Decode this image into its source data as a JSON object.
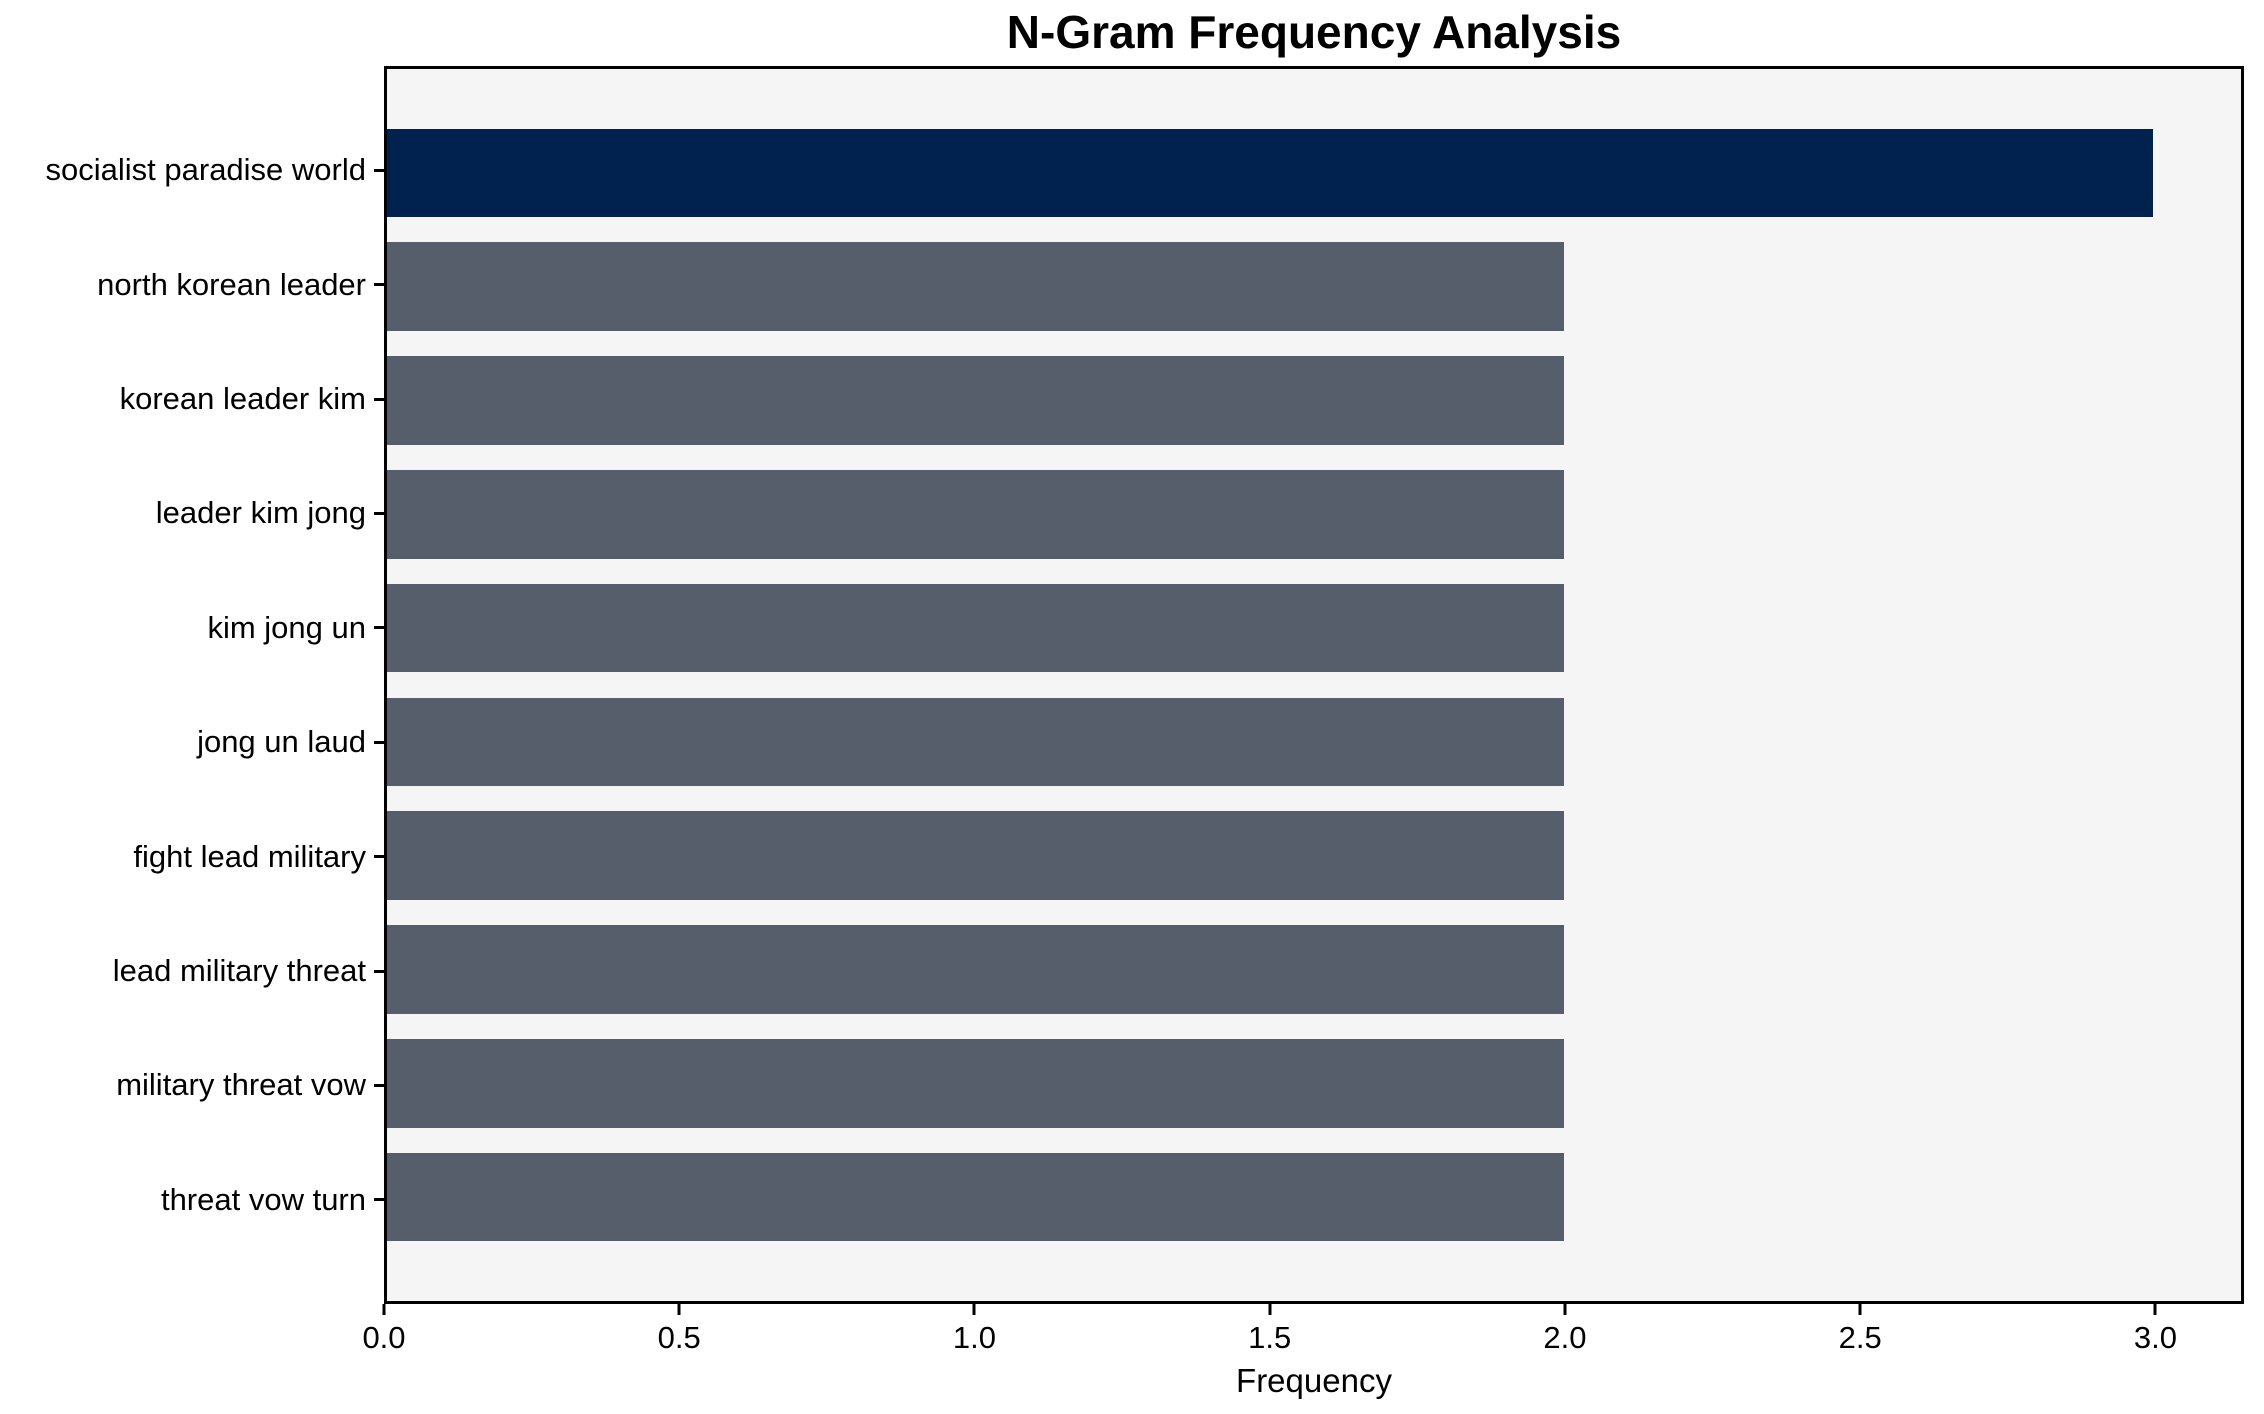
{
  "chart_data": {
    "type": "bar",
    "orientation": "horizontal",
    "title": "N-Gram Frequency Analysis",
    "xlabel": "Frequency",
    "ylabel": "",
    "categories": [
      "socialist paradise world",
      "north korean leader",
      "korean leader kim",
      "leader kim jong",
      "kim jong un",
      "jong un laud",
      "fight lead military",
      "lead military threat",
      "military threat vow",
      "threat vow turn"
    ],
    "values": [
      3,
      2,
      2,
      2,
      2,
      2,
      2,
      2,
      2,
      2
    ],
    "bar_colors": [
      "#01224e",
      "#565d6b",
      "#565d6b",
      "#565d6b",
      "#565d6b",
      "#565d6b",
      "#565d6b",
      "#565d6b",
      "#565d6b",
      "#565d6b"
    ],
    "xlim": [
      0,
      3.15
    ],
    "xticks": [
      0.0,
      0.5,
      1.0,
      1.5,
      2.0,
      2.5,
      3.0
    ],
    "xtick_labels": [
      "0.0",
      "0.5",
      "1.0",
      "1.5",
      "2.0",
      "2.5",
      "3.0"
    ],
    "grid": false,
    "layout": {
      "plot_background": "#f5f5f6",
      "figure_background": "#ffffff",
      "spine_color": "#000000",
      "text_color": "#000000",
      "legend": "none"
    }
  }
}
